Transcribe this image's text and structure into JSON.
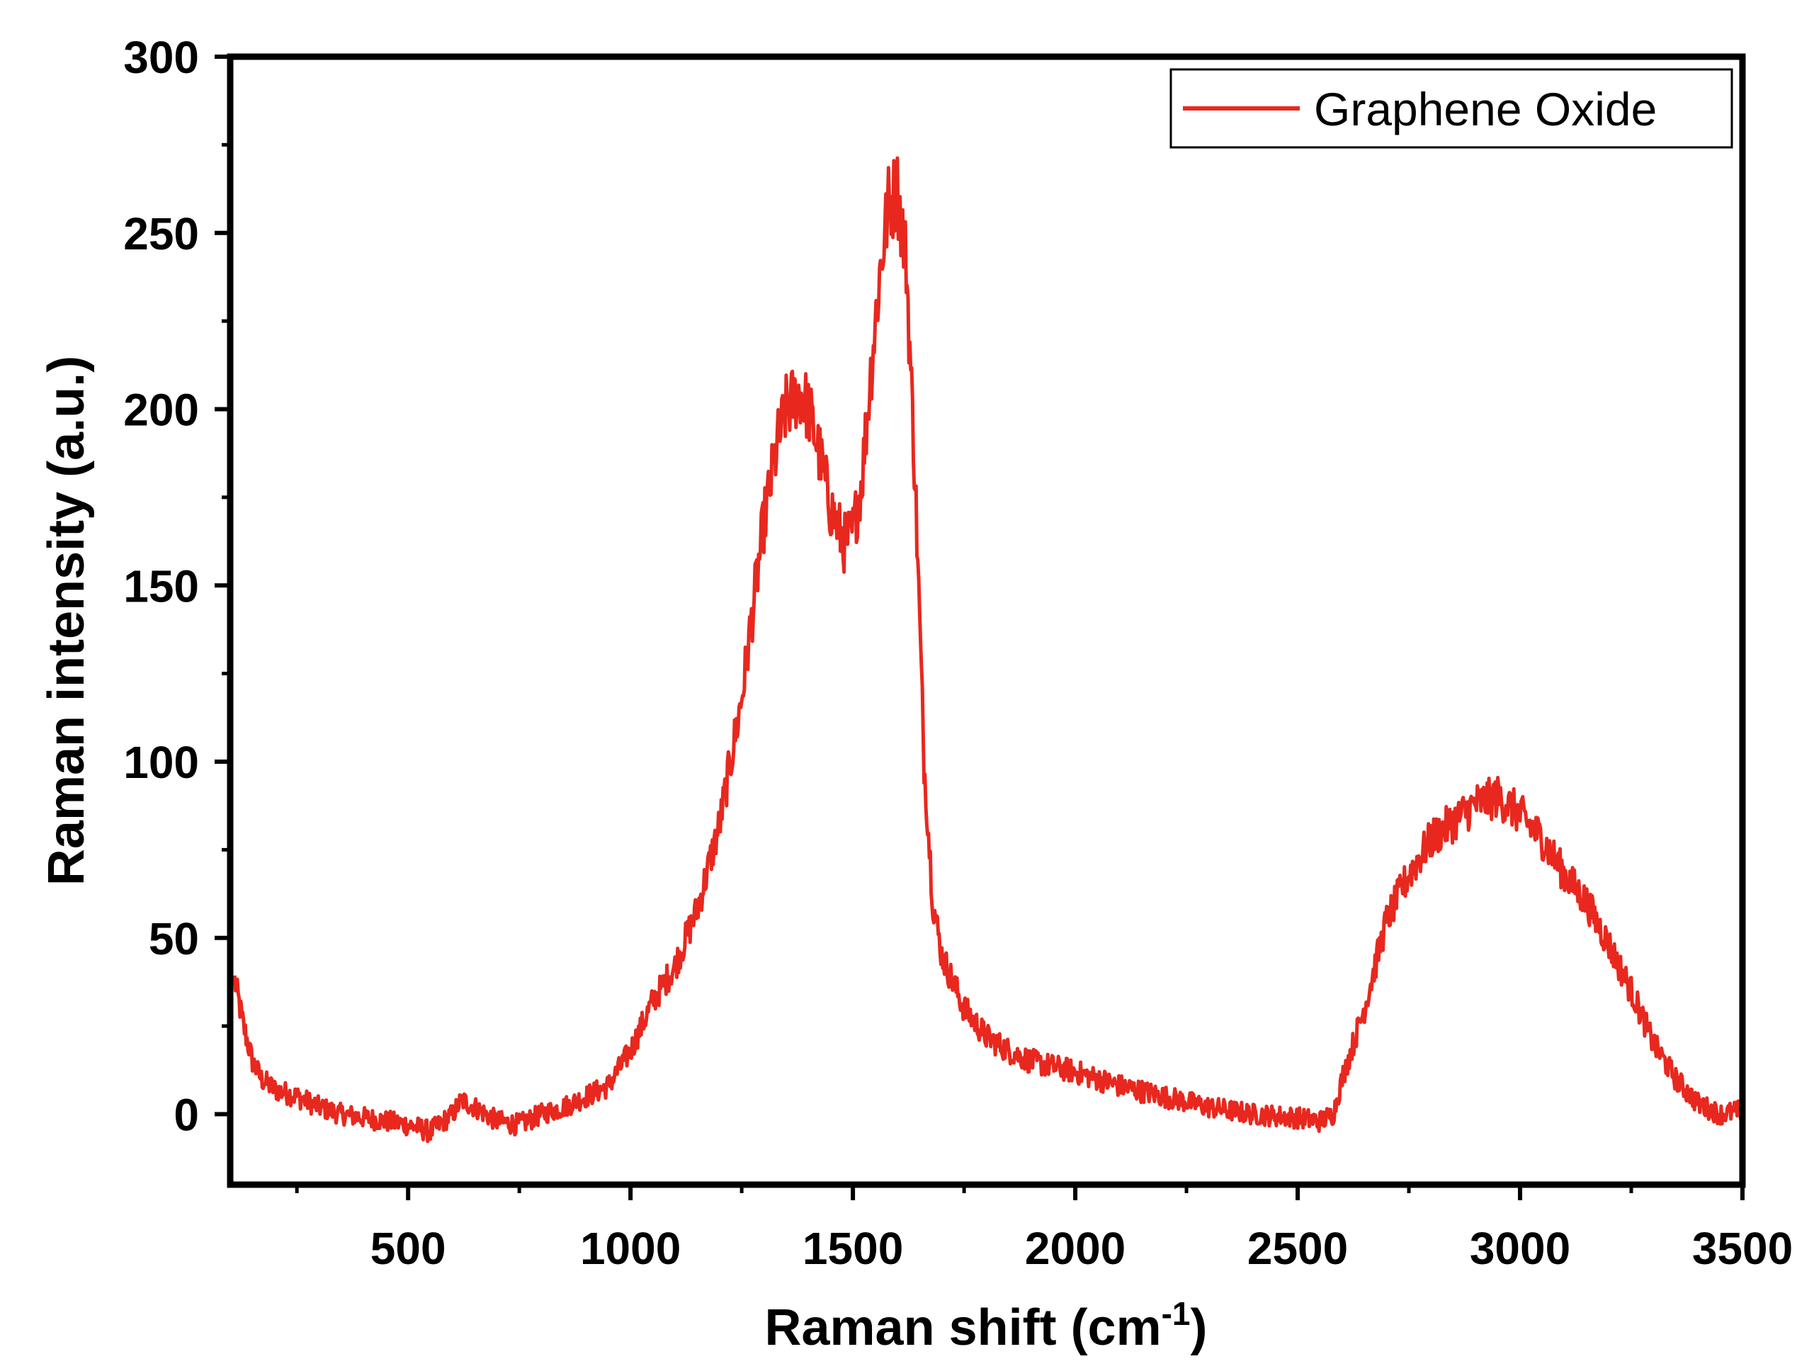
{
  "chart_data": {
    "type": "line",
    "xlabel": "Raman shift (cm",
    "xlabel_sup": "-1",
    "xlabel_close": ")",
    "ylabel": "Raman intensity (a.u.)",
    "xlim": [
      100,
      3500
    ],
    "ylim": [
      -20,
      300
    ],
    "xticks": [
      500,
      1000,
      1500,
      2000,
      2500,
      3000,
      3500
    ],
    "yticks": [
      0,
      50,
      100,
      150,
      200,
      250,
      300
    ],
    "legend_position": "top-right",
    "series": [
      {
        "name": "Graphene Oxide",
        "color": "#e8281e",
        "x": [
          110,
          130,
          150,
          170,
          200,
          250,
          300,
          350,
          400,
          450,
          500,
          550,
          600,
          620,
          650,
          700,
          750,
          800,
          850,
          900,
          950,
          1000,
          1050,
          1100,
          1150,
          1200,
          1250,
          1280,
          1300,
          1330,
          1350,
          1380,
          1400,
          1420,
          1450,
          1480,
          1500,
          1520,
          1540,
          1560,
          1580,
          1600,
          1620,
          1640,
          1660,
          1680,
          1700,
          1750,
          1800,
          1850,
          1900,
          2000,
          2100,
          2200,
          2300,
          2400,
          2500,
          2550,
          2580,
          2600,
          2650,
          2700,
          2750,
          2800,
          2850,
          2900,
          2950,
          3000,
          3050,
          3100,
          3150,
          3200,
          3250,
          3300,
          3350,
          3400,
          3450,
          3500
        ],
        "y": [
          38,
          25,
          15,
          10,
          7,
          5,
          2,
          0,
          -1,
          -2,
          -3,
          -5,
          0,
          4,
          2,
          -2,
          -3,
          0,
          2,
          5,
          8,
          18,
          32,
          42,
          58,
          82,
          118,
          148,
          168,
          190,
          200,
          205,
          200,
          190,
          172,
          162,
          165,
          180,
          210,
          238,
          258,
          262,
          242,
          180,
          100,
          60,
          45,
          30,
          22,
          18,
          15,
          12,
          8,
          5,
          2,
          0,
          -1,
          -2,
          0,
          10,
          30,
          55,
          68,
          78,
          83,
          88,
          90,
          85,
          78,
          68,
          60,
          48,
          35,
          20,
          10,
          3,
          0,
          1
        ]
      }
    ]
  }
}
